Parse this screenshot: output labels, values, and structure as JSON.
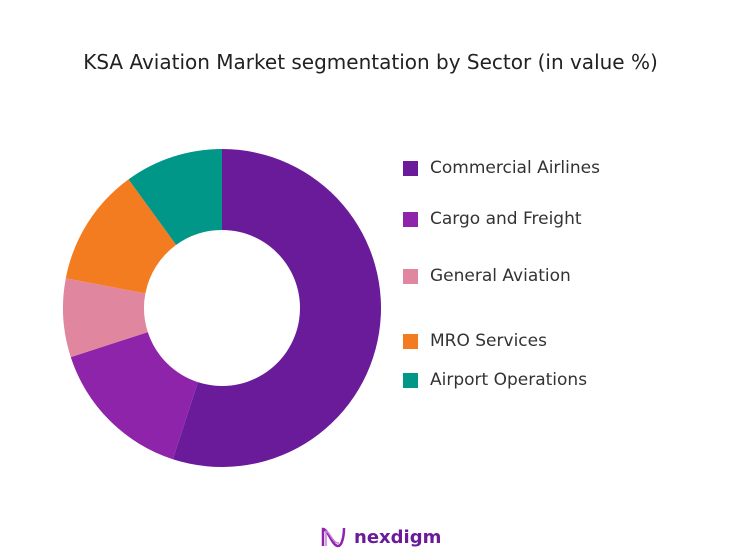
{
  "chart_data": {
    "type": "pie",
    "donut": true,
    "title": "KSA Aviation Market segmentation by Sector (in value %)",
    "categories": [
      "Commercial Airlines",
      "Cargo and Freight",
      "General Aviation",
      "MRO Services",
      "Airport Operations"
    ],
    "values": [
      55,
      15,
      8,
      12,
      10
    ],
    "colors": [
      "#6a1b9a",
      "#8e24aa",
      "#e0879f",
      "#f47c20",
      "#009688"
    ],
    "legend_position": "right"
  },
  "logo": {
    "text": "nexdigm"
  }
}
